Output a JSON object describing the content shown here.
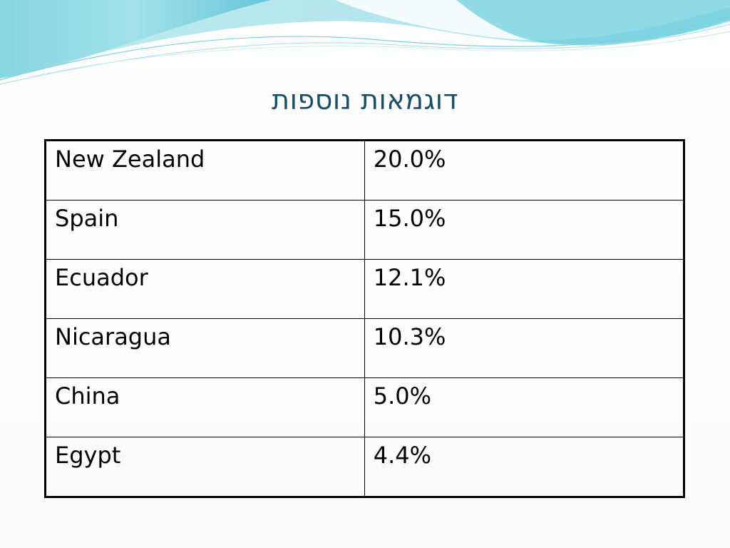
{
  "slide": {
    "title": "דוגמאות נוספות"
  },
  "colors": {
    "title": "#1a4f6b",
    "wave_light": "#9edde6",
    "wave_mid": "#5bc3d4",
    "wave_dark": "#2e9fb8",
    "table_border": "#000000"
  },
  "table": {
    "rows": [
      {
        "country": "New Zealand",
        "value": "20.0%"
      },
      {
        "country": "Spain",
        "value": "15.0%"
      },
      {
        "country": "Ecuador",
        "value": "12.1%"
      },
      {
        "country": "Nicaragua",
        "value": "10.3%"
      },
      {
        "country": "China",
        "value": "5.0%"
      },
      {
        "country": "Egypt",
        "value": "4.4%"
      }
    ]
  }
}
